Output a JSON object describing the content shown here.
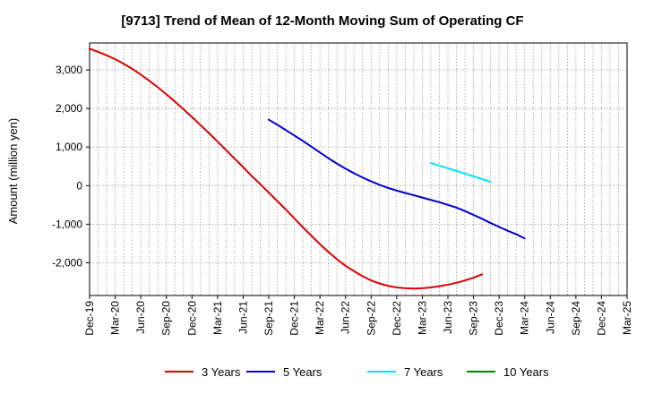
{
  "chart_data": {
    "type": "line",
    "title": "[9713]  Trend of Mean of 12-Month Moving Sum of Operating CF",
    "xlabel": "",
    "ylabel": "Amount (million yen)",
    "ylim": [
      -2850,
      3700
    ],
    "yticks": [
      3000,
      2000,
      1000,
      0,
      -1000,
      -2000
    ],
    "ytick_labels": [
      "3,000",
      "2,000",
      "1,000",
      "0",
      "-1,000",
      "-2,000"
    ],
    "x_tick_labels": [
      "Dec-19",
      "Mar-20",
      "Jun-20",
      "Sep-20",
      "Dec-20",
      "Mar-21",
      "Jun-21",
      "Sep-21",
      "Dec-21",
      "Mar-22",
      "Jun-22",
      "Sep-22",
      "Dec-22",
      "Mar-23",
      "Jun-23",
      "Sep-23",
      "Dec-23",
      "Mar-24",
      "Jun-24",
      "Sep-24",
      "Dec-24",
      "Mar-25"
    ],
    "grid": true,
    "legend_position": "bottom",
    "series": [
      {
        "name": "3 Years",
        "color": "#dd0000",
        "start_index": 0,
        "values": [
          3550,
          3470,
          3380,
          3280,
          3160,
          3030,
          2880,
          2720,
          2550,
          2370,
          2180,
          1980,
          1780,
          1570,
          1360,
          1140,
          920,
          700,
          480,
          250,
          40,
          -180,
          -400,
          -620,
          -850,
          -1080,
          -1300,
          -1520,
          -1720,
          -1910,
          -2080,
          -2220,
          -2350,
          -2460,
          -2540,
          -2600,
          -2640,
          -2660,
          -2670,
          -2660,
          -2640,
          -2610,
          -2570,
          -2520,
          -2460,
          -2390,
          -2300
        ]
      },
      {
        "name": "5 Years",
        "color": "#0000cc",
        "start_index": 21,
        "values": [
          1710,
          1580,
          1440,
          1300,
          1160,
          1010,
          860,
          710,
          570,
          440,
          320,
          210,
          110,
          20,
          -60,
          -130,
          -190,
          -250,
          -310,
          -370,
          -430,
          -500,
          -570,
          -660,
          -760,
          -860,
          -970,
          -1070,
          -1170,
          -1260,
          -1370
        ]
      },
      {
        "name": "7 Years",
        "color": "#00e5ee",
        "start_index": 40,
        "values": [
          590,
          520,
          450,
          380,
          310,
          240,
          170,
          100
        ]
      },
      {
        "name": "10 Years",
        "color": "#008800",
        "start_index": 0,
        "values": []
      }
    ]
  }
}
